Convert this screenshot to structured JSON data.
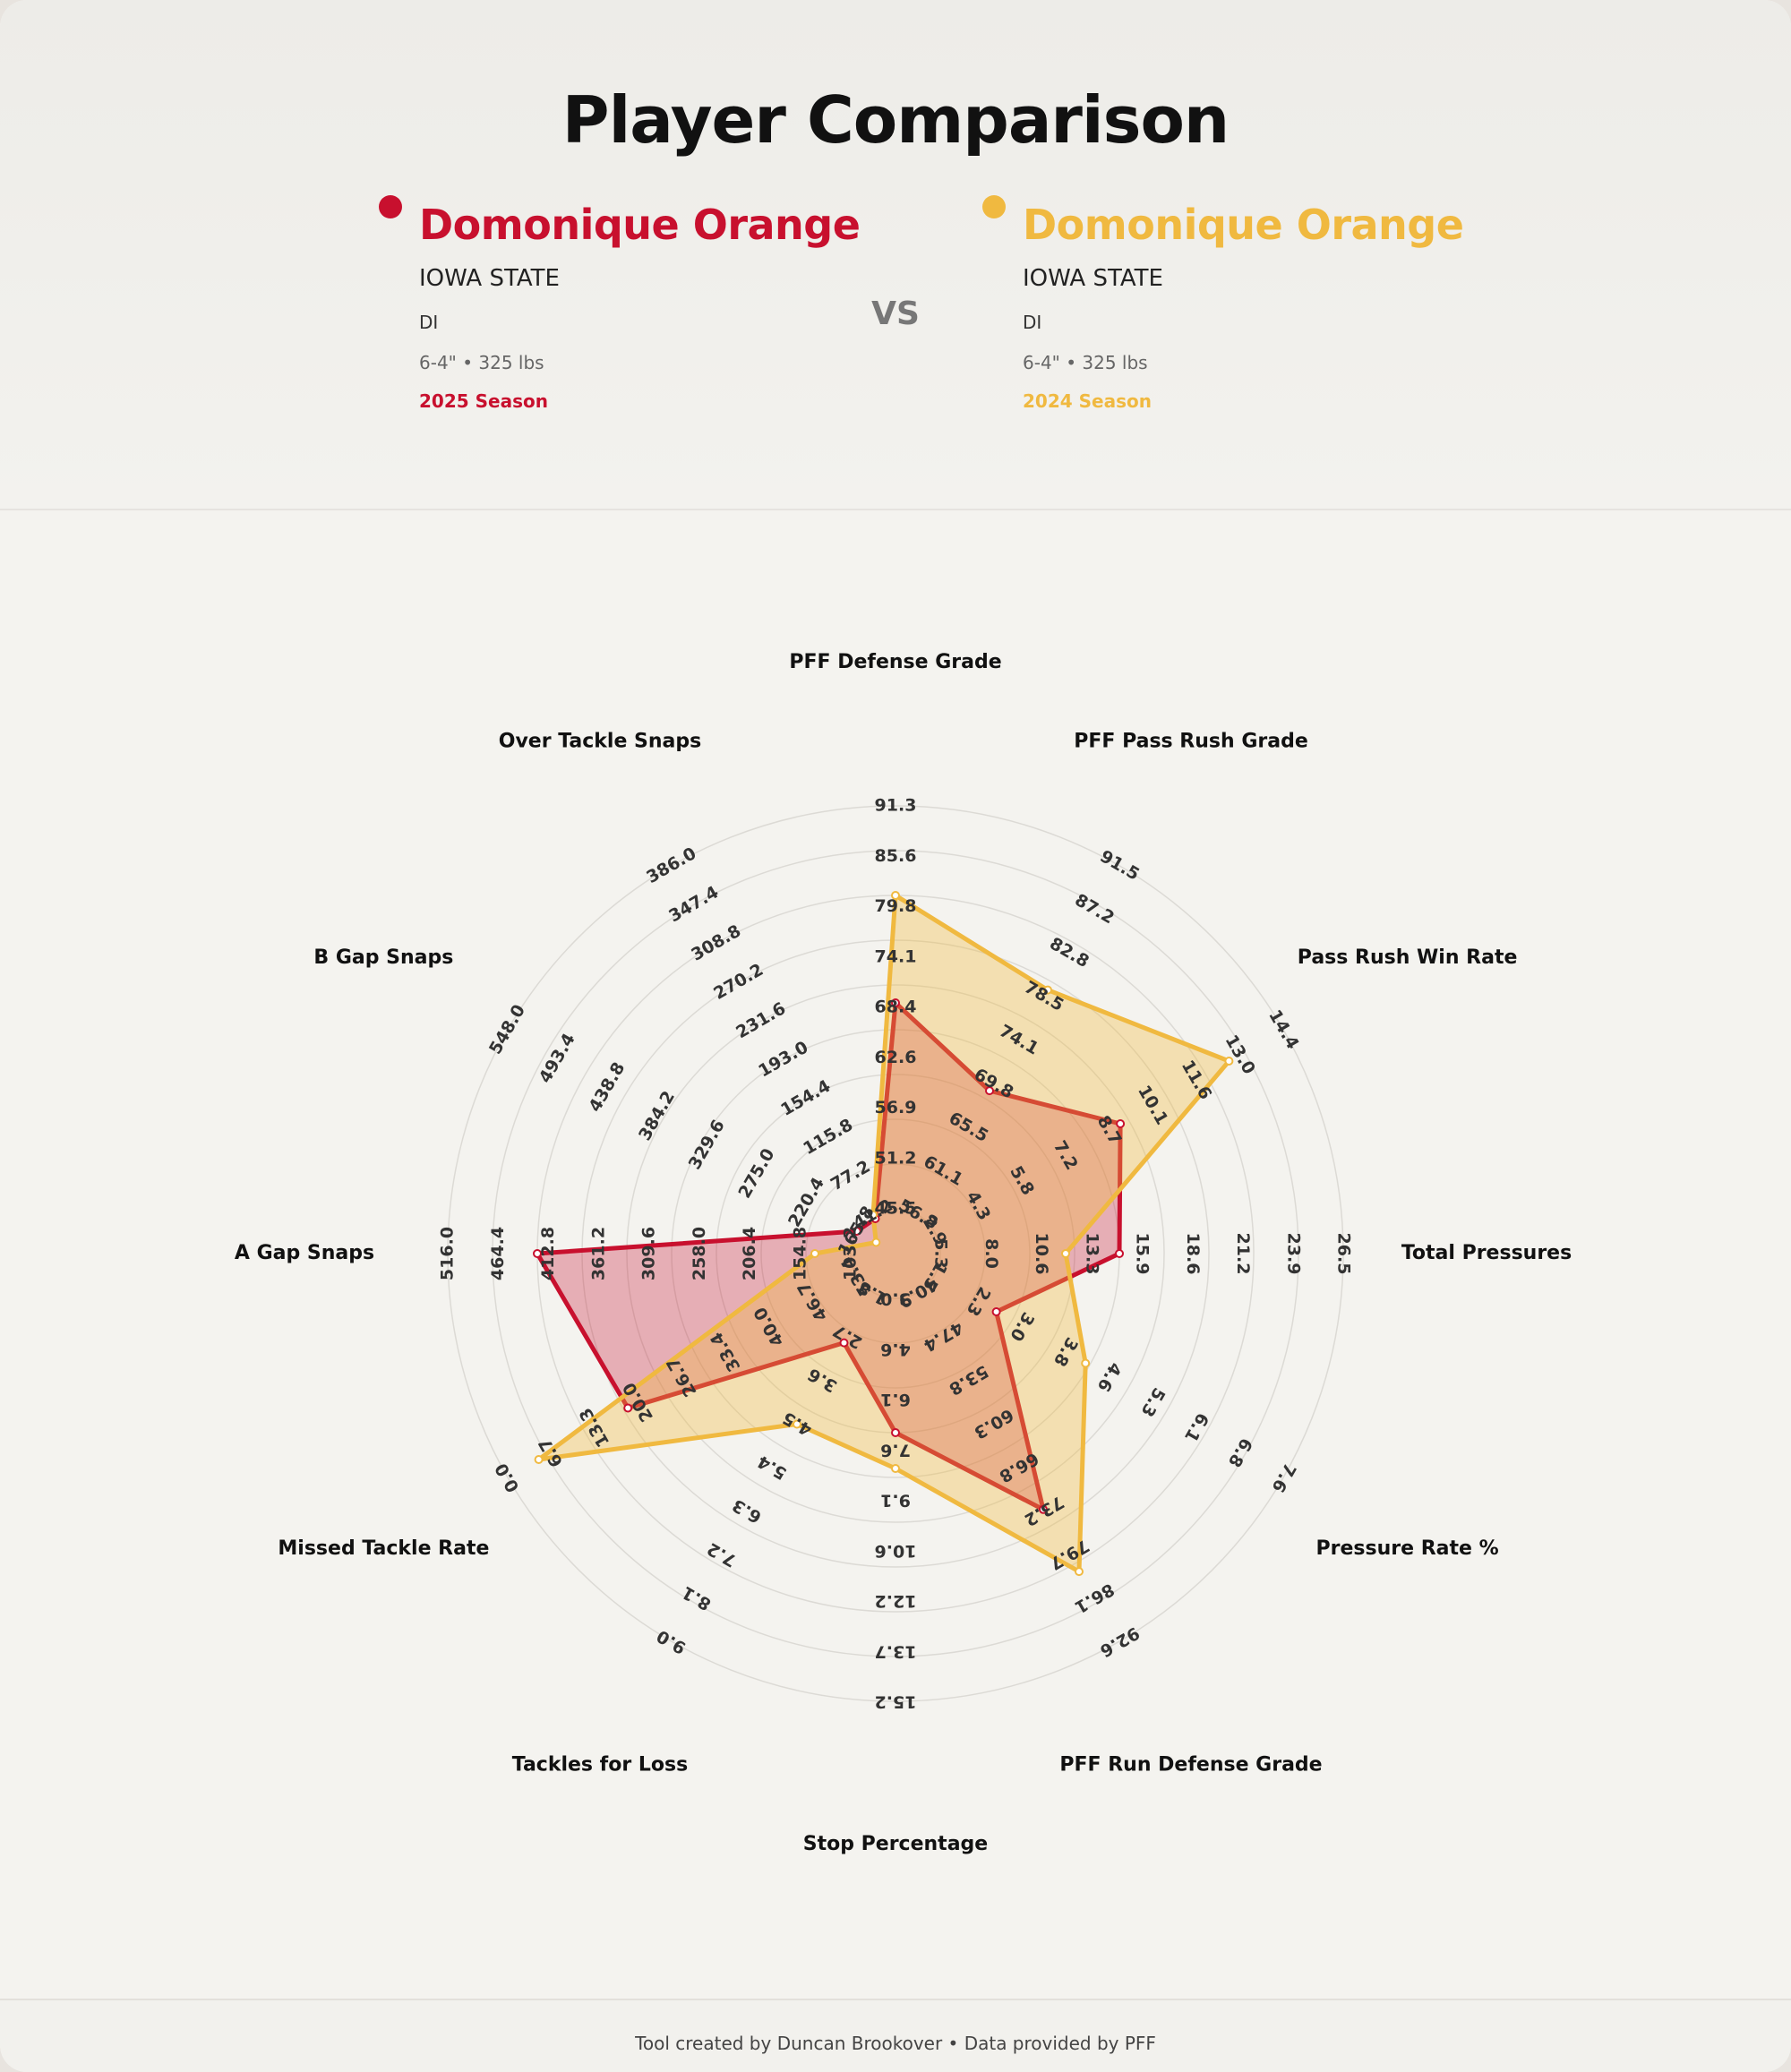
{
  "header": {
    "title": "Player Comparison",
    "vs_label": "VS"
  },
  "players": [
    {
      "name": "Domonique Orange",
      "school": "IOWA STATE",
      "position": "DI",
      "physical": "6-4\" • 325 lbs",
      "season": "2025 Season",
      "color": "#c8102e"
    },
    {
      "name": "Domonique Orange",
      "school": "IOWA STATE",
      "position": "DI",
      "physical": "6-4\" • 325 lbs",
      "season": "2024 Season",
      "color": "#f0b940"
    }
  ],
  "footer": {
    "credit": "Tool created by Duncan Brookover • Data provided by PFF"
  },
  "chart_data": {
    "type": "radar",
    "axes": [
      {
        "label": "PFF Defense Grade",
        "ticks": [
          "45.5",
          "51.2",
          "56.9",
          "62.6",
          "68.4",
          "74.1",
          "79.8",
          "85.6",
          "91.3"
        ]
      },
      {
        "label": "PFF Pass Rush Grade",
        "ticks": [
          "56.8",
          "61.1",
          "65.5",
          "69.8",
          "74.1",
          "78.5",
          "82.8",
          "87.2",
          "91.5"
        ]
      },
      {
        "label": "Pass Rush Win Rate",
        "ticks": [
          "2.9",
          "4.3",
          "5.8",
          "7.2",
          "8.7",
          "10.1",
          "11.6",
          "13.0",
          "14.4"
        ]
      },
      {
        "label": "Total Pressures",
        "ticks": [
          "5.3",
          "8.0",
          "10.6",
          "13.3",
          "15.9",
          "18.6",
          "21.2",
          "23.9",
          "26.5"
        ]
      },
      {
        "label": "Pressure Rate %",
        "ticks": [
          "1.5",
          "2.3",
          "3.0",
          "3.8",
          "4.6",
          "5.3",
          "6.1",
          "6.8",
          "7.6"
        ]
      },
      {
        "label": "PFF Run Defense Grade",
        "ticks": [
          "40.9",
          "47.4",
          "53.8",
          "60.3",
          "66.8",
          "73.2",
          "79.7",
          "86.1",
          "92.6"
        ]
      },
      {
        "label": "Stop Percentage",
        "ticks": [
          "3.0",
          "4.6",
          "6.1",
          "7.6",
          "9.1",
          "10.6",
          "12.2",
          "13.7",
          "15.2"
        ]
      },
      {
        "label": "Tackles for Loss",
        "ticks": [
          "1.8",
          "2.7",
          "3.6",
          "4.5",
          "5.4",
          "6.3",
          "7.2",
          "8.1",
          "9.0"
        ]
      },
      {
        "label": "Missed Tackle Rate",
        "ticks": [
          "53.4",
          "46.7",
          "40.0",
          "33.4",
          "26.7",
          "20.0",
          "13.3",
          "6.7",
          "0.0"
        ]
      },
      {
        "label": "A Gap Snaps",
        "ticks": [
          "103.2",
          "154.8",
          "206.4",
          "258.0",
          "309.6",
          "361.2",
          "412.8",
          "464.4",
          "516.0"
        ]
      },
      {
        "label": "B Gap Snaps",
        "ticks": [
          "165.8",
          "220.4",
          "275.0",
          "329.6",
          "384.2",
          "438.8",
          "493.4",
          "548.0"
        ]
      },
      {
        "label": "Over Tackle Snaps",
        "ticks": [
          "41.2",
          "77.2",
          "115.8",
          "154.4",
          "193.0",
          "231.6",
          "270.2",
          "308.8",
          "347.4",
          "386.0"
        ]
      }
    ],
    "series": [
      {
        "name": "Domonique Orange — 2025 Season",
        "color": "#c8102e",
        "fill": "rgba(200,16,46,0.30)",
        "radius_fraction": [
          0.56,
          0.42,
          0.58,
          0.5,
          0.26,
          0.66,
          0.4,
          0.23,
          0.69,
          0.8,
          0.1,
          0.09
        ]
      },
      {
        "name": "Domonique Orange — 2024 Season",
        "color": "#f0b940",
        "fill": "rgba(240,185,64,0.35)",
        "radius_fraction": [
          0.8,
          0.68,
          0.86,
          0.38,
          0.49,
          0.82,
          0.48,
          0.44,
          0.92,
          0.18,
          0.05,
          0.1
        ]
      }
    ],
    "legend": "header",
    "grid": true
  }
}
